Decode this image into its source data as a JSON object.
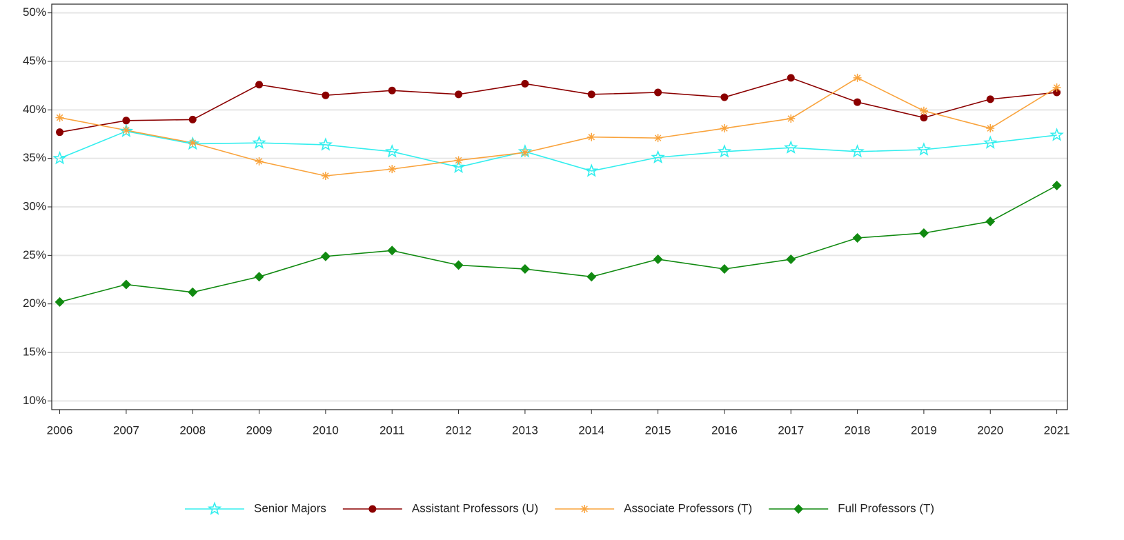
{
  "chart_data": {
    "type": "line",
    "x": [
      2006,
      2007,
      2008,
      2009,
      2010,
      2011,
      2012,
      2013,
      2014,
      2015,
      2016,
      2017,
      2018,
      2019,
      2020,
      2021
    ],
    "xlim": [
      2005.88,
      2021.16
    ],
    "xticks": [
      2006,
      2007,
      2008,
      2009,
      2010,
      2011,
      2012,
      2013,
      2014,
      2015,
      2016,
      2017,
      2018,
      2019,
      2020,
      2021
    ],
    "ylim": [
      9.1,
      50.9
    ],
    "yticks": [
      {
        "value": 10,
        "label": "10%"
      },
      {
        "value": 15,
        "label": "15%"
      },
      {
        "value": 20,
        "label": "20%"
      },
      {
        "value": 25,
        "label": "25%"
      },
      {
        "value": 30,
        "label": "30%"
      },
      {
        "value": 35,
        "label": "35%"
      },
      {
        "value": 40,
        "label": "40%"
      },
      {
        "value": 45,
        "label": "45%"
      },
      {
        "value": 50,
        "label": "50%"
      }
    ],
    "grid": true,
    "legend": "bottom",
    "series": [
      {
        "name": "Senior Majors",
        "color": "#33eeee",
        "marker": "star",
        "values": [
          35.0,
          37.8,
          36.5,
          36.6,
          36.4,
          35.7,
          34.1,
          35.7,
          33.7,
          35.1,
          35.7,
          36.1,
          35.7,
          35.9,
          36.6,
          37.4
        ]
      },
      {
        "name": "Assistant Professors (U)",
        "color": "#8b0000",
        "marker": "circle",
        "values": [
          37.7,
          38.9,
          39.0,
          42.6,
          41.5,
          42.0,
          41.6,
          42.7,
          41.6,
          41.8,
          41.3,
          43.3,
          40.8,
          39.2,
          41.1,
          41.8
        ]
      },
      {
        "name": "Associate Professors (T)",
        "color": "#f9a33c",
        "marker": "asterisk",
        "values": [
          39.2,
          37.9,
          36.6,
          34.7,
          33.2,
          33.9,
          34.8,
          35.6,
          37.2,
          37.1,
          38.1,
          39.1,
          43.3,
          39.9,
          38.1,
          42.3
        ]
      },
      {
        "name": "Full Professors (T)",
        "color": "#118a11",
        "marker": "diamond",
        "values": [
          20.2,
          22.0,
          21.2,
          22.8,
          24.9,
          25.5,
          24.0,
          23.6,
          22.8,
          24.6,
          23.6,
          24.6,
          26.8,
          27.3,
          28.5,
          32.2
        ]
      }
    ]
  }
}
